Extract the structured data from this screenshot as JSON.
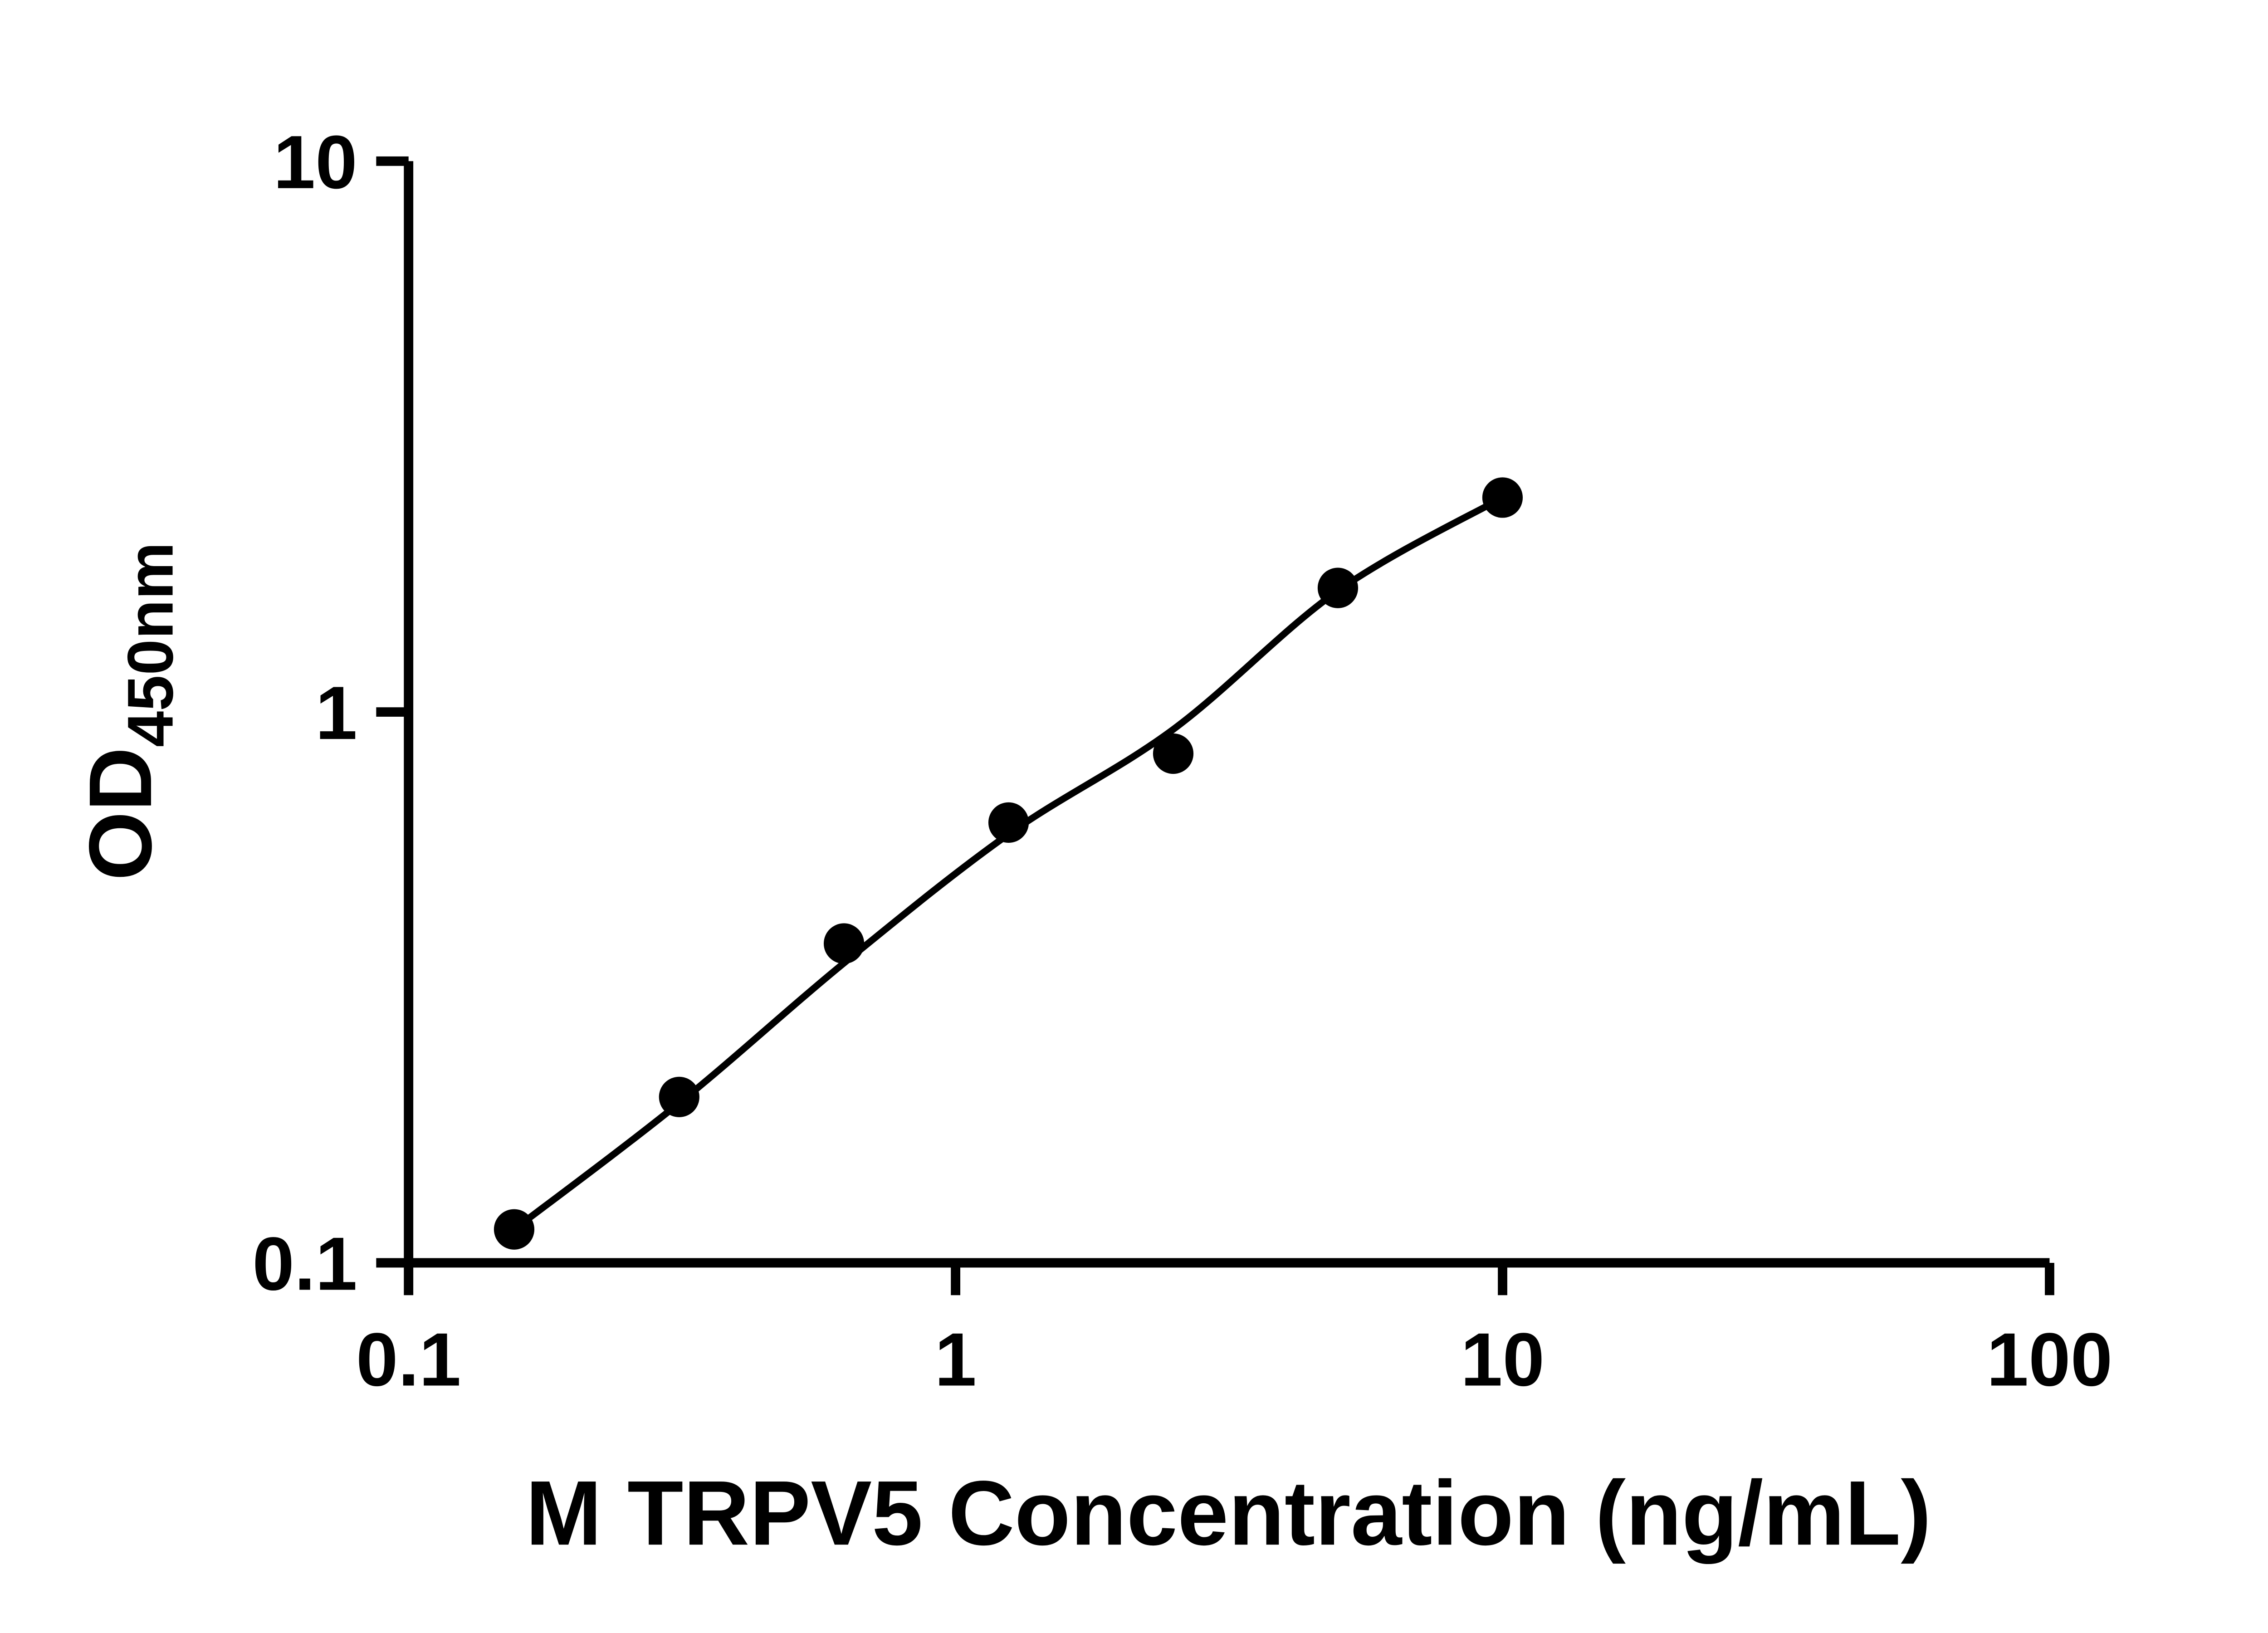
{
  "chart_data": {
    "type": "scatter",
    "title": "",
    "xlabel": "M TRPV5 Concentration (ng/mL)",
    "ylabel_main": "OD",
    "ylabel_sub": "450nm",
    "x_scale": "log",
    "y_scale": "log",
    "x_domain": [
      0.1,
      100
    ],
    "y_domain": [
      0.1,
      10
    ],
    "x_ticks": [
      {
        "value": 0.1,
        "label": "0.1"
      },
      {
        "value": 1,
        "label": "1"
      },
      {
        "value": 10,
        "label": "10"
      },
      {
        "value": 100,
        "label": "100"
      }
    ],
    "y_ticks": [
      {
        "value": 0.1,
        "label": "0.1"
      },
      {
        "value": 1,
        "label": "1"
      },
      {
        "value": 10,
        "label": "10"
      }
    ],
    "grid": false,
    "legend": "none",
    "axis_color": "#000000",
    "background_color": "#ffffff",
    "series": [
      {
        "marker": "circle",
        "color": "#000000",
        "points": [
          {
            "x": 0.156,
            "y": 0.115
          },
          {
            "x": 0.3125,
            "y": 0.2
          },
          {
            "x": 0.625,
            "y": 0.38
          },
          {
            "x": 1.25,
            "y": 0.63
          },
          {
            "x": 2.5,
            "y": 0.84
          },
          {
            "x": 5,
            "y": 1.68
          },
          {
            "x": 10,
            "y": 2.45
          }
        ]
      }
    ],
    "fit_line": {
      "color": "#000000",
      "points": [
        {
          "x": 0.156,
          "y": 0.115
        },
        {
          "x": 0.3125,
          "y": 0.195
        },
        {
          "x": 0.625,
          "y": 0.35
        },
        {
          "x": 1.25,
          "y": 0.6
        },
        {
          "x": 2.5,
          "y": 0.93
        },
        {
          "x": 5,
          "y": 1.66
        },
        {
          "x": 10,
          "y": 2.45
        }
      ]
    }
  }
}
